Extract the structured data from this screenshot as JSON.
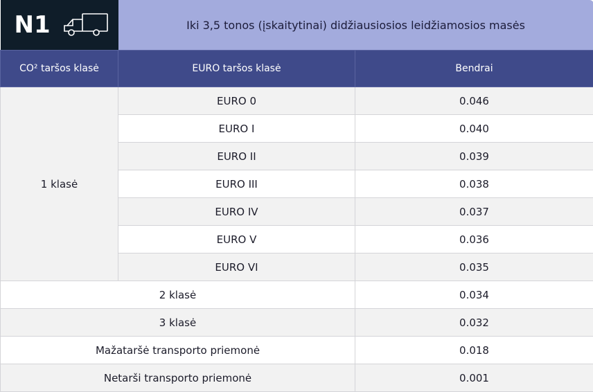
{
  "header": {
    "badge": "N1",
    "title": "Iki 3,5 tonos (įskaitytinai) didžiausiosios leidžiamosios masės"
  },
  "table": {
    "columns": [
      "CO² taršos klasė",
      "EURO taršos klasė",
      "Bendrai"
    ],
    "group": {
      "label": "1 klasė",
      "rows": [
        [
          "EURO 0",
          "0.046"
        ],
        [
          "EURO I",
          "0.040"
        ],
        [
          "EURO II",
          "0.039"
        ],
        [
          "EURO III",
          "0.038"
        ],
        [
          "EURO IV",
          "0.037"
        ],
        [
          "EURO V",
          "0.036"
        ],
        [
          "EURO VI",
          "0.035"
        ]
      ]
    },
    "rows": [
      [
        "2 klasė",
        "0.034"
      ],
      [
        "3 klasė",
        "0.032"
      ],
      [
        "Mažataršė transporto priemonė",
        "0.018"
      ],
      [
        "Netarši transporto priemonė",
        "0.001"
      ]
    ]
  }
}
